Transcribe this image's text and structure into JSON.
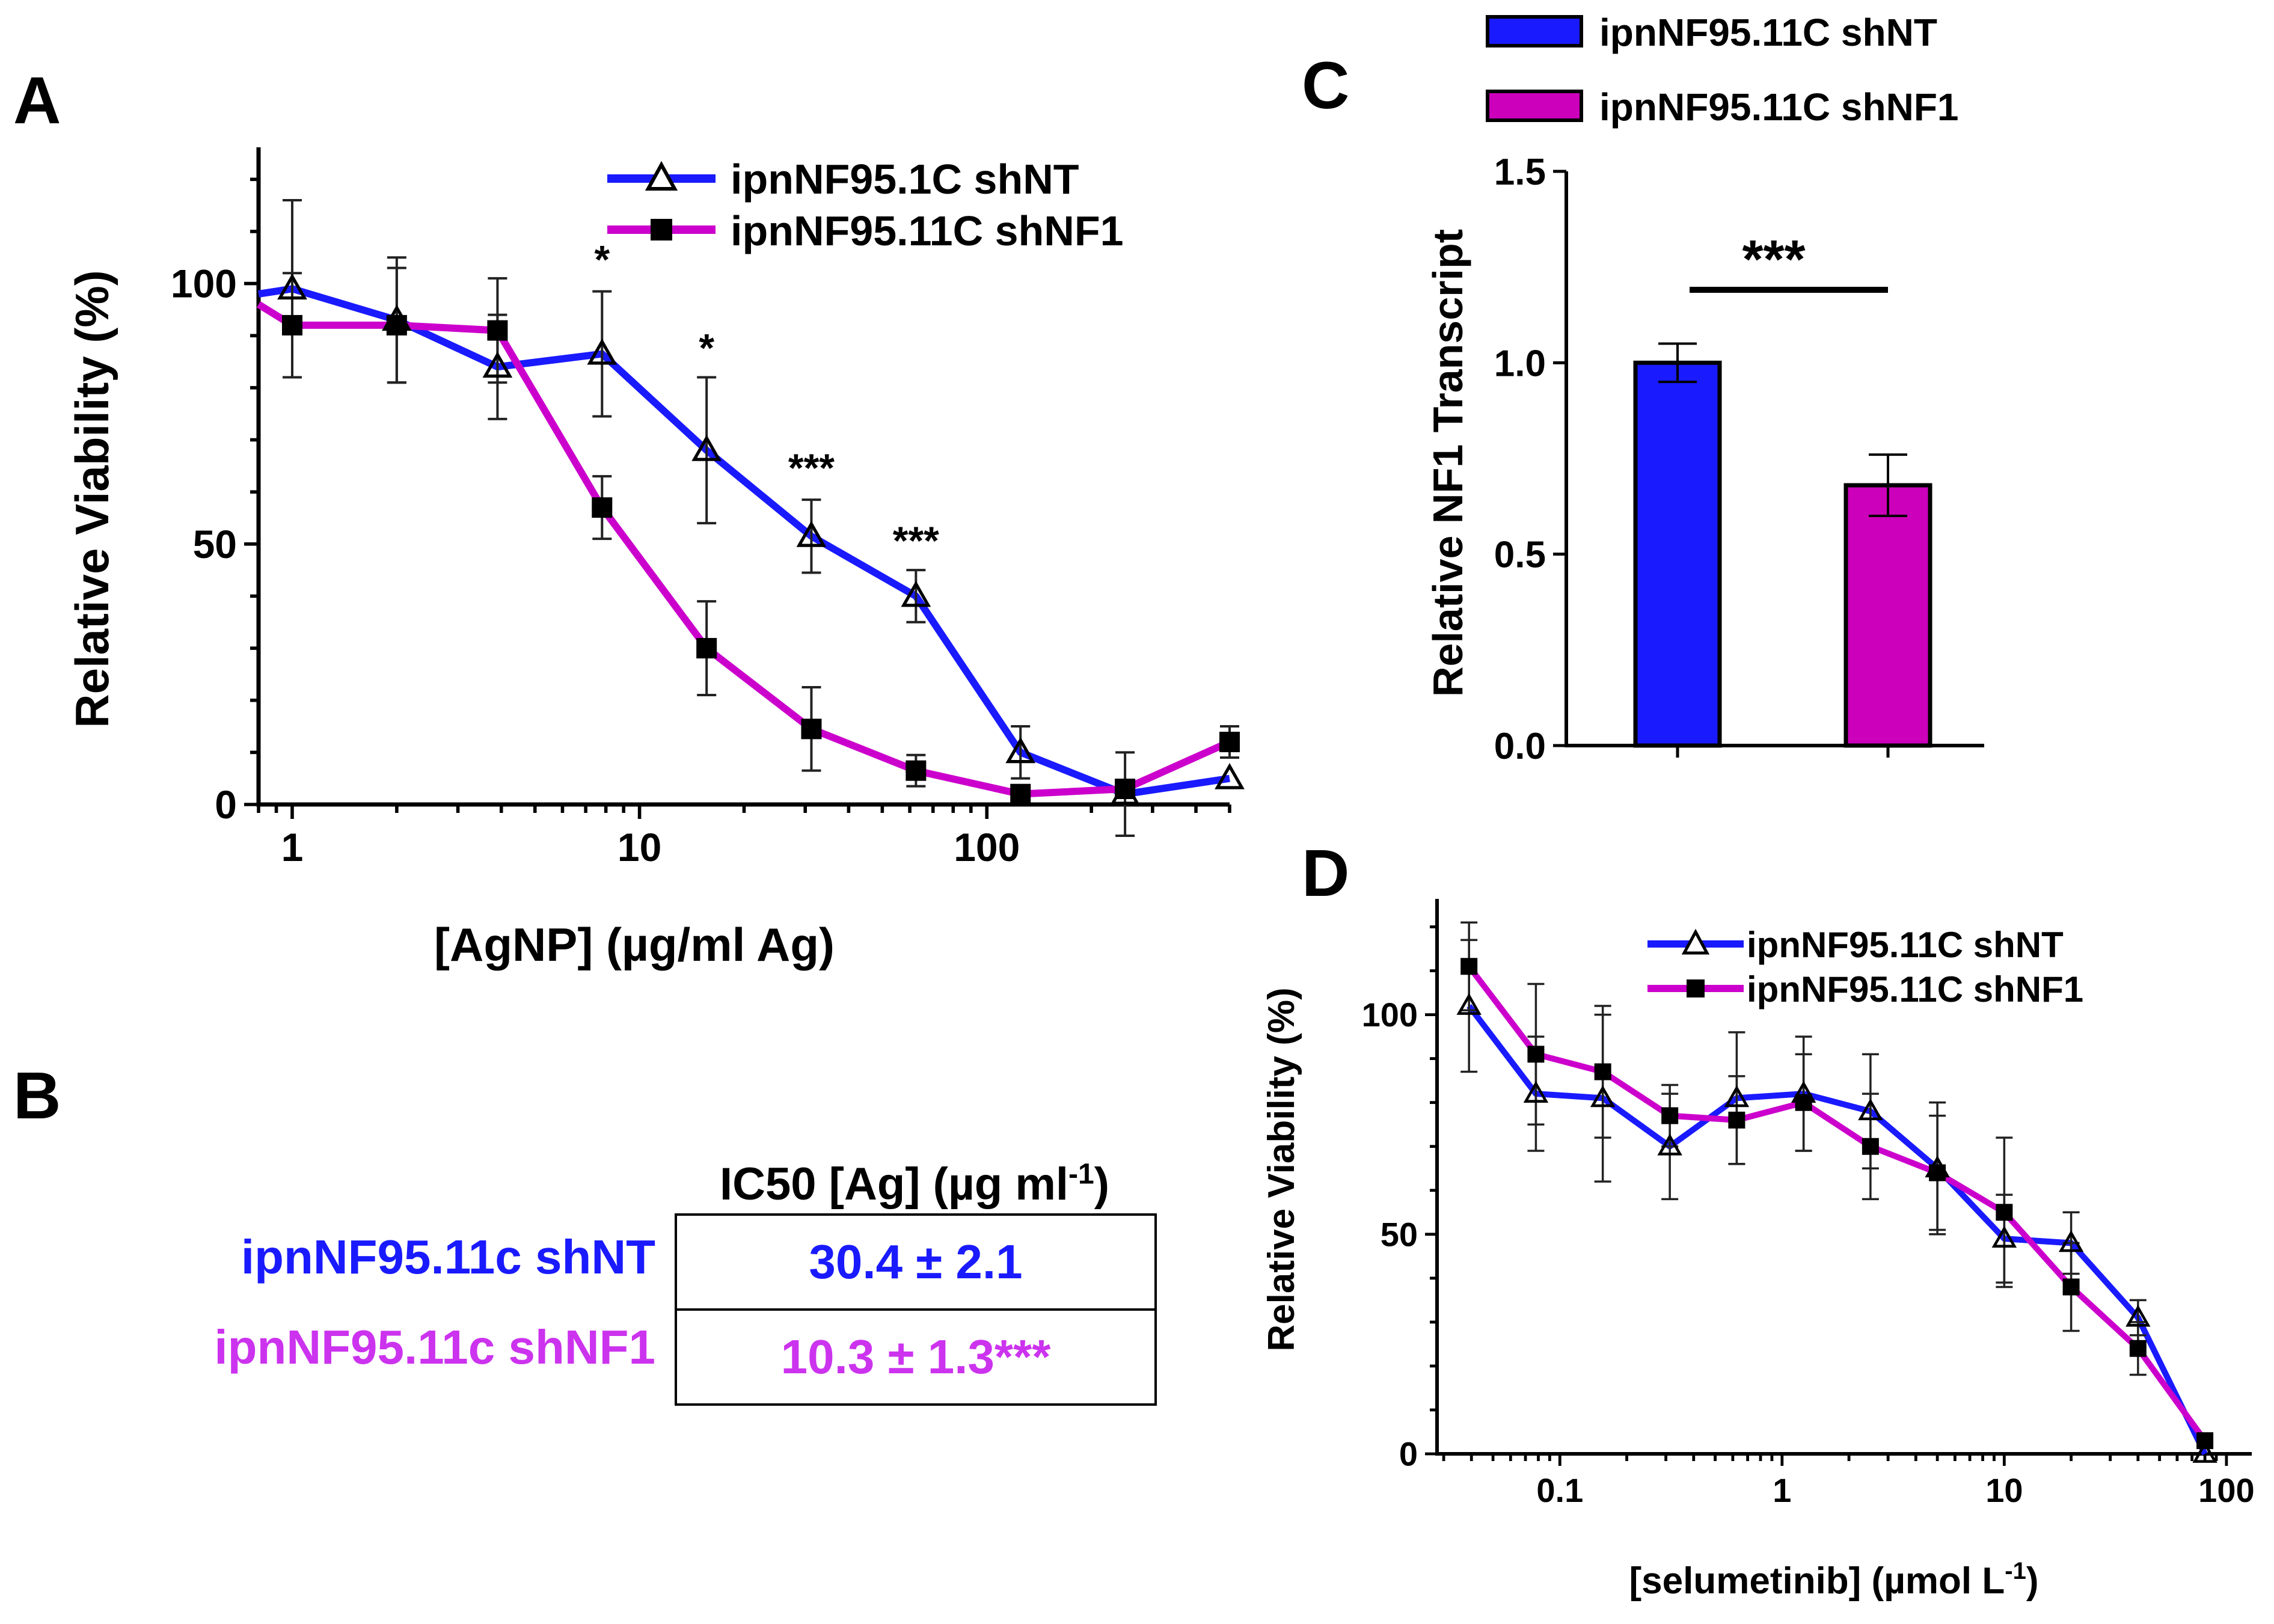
{
  "colors": {
    "blue": "#1a1aff",
    "magenta": "#cc00cc",
    "magentaFill": "#cc00bb",
    "black": "#000000"
  },
  "panels": {
    "A": {
      "label": "A",
      "chart_data": {
        "type": "line",
        "xscale": "log",
        "xlabel": "[AgNP] (µg/ml Ag)",
        "ylabel": "Relative Viability (%)",
        "xlim": [
          0.8,
          500
        ],
        "ylim": [
          0,
          125
        ],
        "xticks": [
          {
            "v": 1,
            "label": "1"
          },
          {
            "v": 10,
            "label": "10"
          },
          {
            "v": 100,
            "label": "100"
          }
        ],
        "yticks": [
          {
            "v": 0,
            "label": "0"
          },
          {
            "v": 50,
            "label": "50"
          },
          {
            "v": 100,
            "label": "100"
          }
        ],
        "legend": [
          "ipnNF95.1C shNT",
          "ipnNF95.11C shNF1"
        ],
        "series": [
          {
            "name": "ipnNF95.1C shNT",
            "marker": "triangle",
            "color": "blue",
            "x": [
              1,
              2,
              3.9,
              7.8,
              15.6,
              31.25,
              62.5,
              125,
              250,
              500
            ],
            "y": [
              99,
              93,
              84,
              86.5,
              68,
              51.5,
              40,
              10,
              2,
              5
            ],
            "err": [
              17,
              12,
              10,
              12,
              14,
              7,
              5,
              5,
              8,
              0
            ],
            "line_start": [
              0.8,
              98
            ]
          },
          {
            "name": "ipnNF95.11C shNF1",
            "marker": "square",
            "color": "magenta",
            "x": [
              1,
              2,
              3.9,
              7.8,
              15.6,
              31.25,
              62.5,
              125,
              250,
              500
            ],
            "y": [
              92,
              92,
              91,
              57,
              30,
              14.5,
              6.5,
              2,
              3,
              12
            ],
            "err": [
              10,
              11,
              10,
              6,
              9,
              8,
              3,
              0,
              0,
              3
            ],
            "line_start": [
              0.8,
              96
            ]
          }
        ],
        "annotations": [
          {
            "x": 7.8,
            "y": 102,
            "text": "*"
          },
          {
            "x": 15.6,
            "y": 85,
            "text": "*"
          },
          {
            "x": 31.25,
            "y": 62,
            "text": "***"
          },
          {
            "x": 62.5,
            "y": 48,
            "text": "***"
          }
        ]
      }
    },
    "B": {
      "label": "B",
      "header": "IC50 [Ag] (µg ml",
      "header_sup": "-1",
      "header_close": ")",
      "rows": [
        {
          "name": "ipnNF95.11c shNT",
          "value": "30.4 ± 2.1",
          "color": "blue"
        },
        {
          "name": "ipnNF95.11c shNF1",
          "value": "10.3 ± 1.3***",
          "color": "magenta"
        }
      ]
    },
    "C": {
      "label": "C",
      "chart_data": {
        "type": "bar",
        "ylabel": "Relative NF1 Transcript",
        "ylim": [
          0,
          1.5
        ],
        "yticks": [
          {
            "v": 0,
            "label": "0.0"
          },
          {
            "v": 0.5,
            "label": "0.5"
          },
          {
            "v": 1.0,
            "label": "1.0"
          },
          {
            "v": 1.5,
            "label": "1.5"
          }
        ],
        "categories": [
          "ipnNF95.11C shNT",
          "ipnNF95.11C shNF1"
        ],
        "values": [
          1.0,
          0.68
        ],
        "err": [
          0.05,
          0.08
        ],
        "colors": [
          "blue",
          "magentaFill"
        ],
        "significance": "***"
      }
    },
    "D": {
      "label": "D",
      "chart_data": {
        "type": "line",
        "xscale": "log",
        "xlabel": "[selumetinib] (µmol L",
        "xlabel_sup": "-1",
        "xlabel_close": ")",
        "ylabel": "Relative Viability (%)",
        "xlim": [
          0.028,
          130
        ],
        "ylim": [
          0,
          125
        ],
        "xticks": [
          {
            "v": 0.1,
            "label": "0.1"
          },
          {
            "v": 1,
            "label": "1"
          },
          {
            "v": 10,
            "label": "10"
          },
          {
            "v": 100,
            "label": "100"
          }
        ],
        "yticks": [
          {
            "v": 0,
            "label": "0"
          },
          {
            "v": 50,
            "label": "50"
          },
          {
            "v": 100,
            "label": "100"
          }
        ],
        "legend": [
          "ipnNF95.11C shNT",
          "ipnNF95.11C shNF1"
        ],
        "series": [
          {
            "name": "ipnNF95.11C shNT",
            "marker": "triangle",
            "color": "blue",
            "x": [
              0.039,
              0.078,
              0.156,
              0.3125,
              0.625,
              1.25,
              2.5,
              5,
              10,
              20,
              40,
              80
            ],
            "y": [
              102,
              82,
              81,
              70,
              81,
              82,
              78,
              65,
              49,
              48,
              31,
              0
            ],
            "err": [
              15,
              13,
              19,
              12,
              15,
              13,
              13,
              15,
              10,
              7,
              4,
              0
            ]
          },
          {
            "name": "ipnNF95.11C shNF1",
            "marker": "square",
            "color": "magenta",
            "x": [
              0.039,
              0.078,
              0.156,
              0.3125,
              0.625,
              1.25,
              2.5,
              5,
              10,
              20,
              40,
              80
            ],
            "y": [
              111,
              91,
              87,
              77,
              76,
              80,
              70,
              64,
              55,
              38,
              24,
              3
            ],
            "err": [
              10,
              16,
              15,
              7,
              10,
              11,
              12,
              13,
              17,
              10,
              6,
              0
            ]
          }
        ]
      }
    }
  }
}
